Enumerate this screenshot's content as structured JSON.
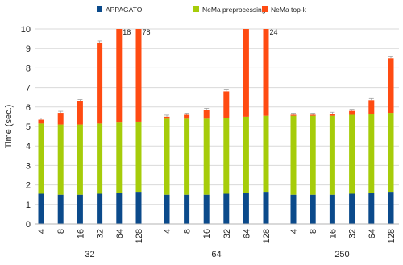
{
  "chart_data": {
    "type": "bar",
    "stacked": true,
    "title": "",
    "xlabel": "",
    "ylabel": "Time (sec.)",
    "ylim": [
      0,
      10
    ],
    "yticks": [
      "0",
      "1",
      "2",
      "3",
      "4",
      "5",
      "6",
      "7",
      "8",
      "9",
      "10"
    ],
    "grid": true,
    "legend_position": "top",
    "groups": [
      {
        "label": "32",
        "categories": [
          "4",
          "8",
          "16",
          "32",
          "64",
          "128"
        ]
      },
      {
        "label": "64",
        "categories": [
          "4",
          "8",
          "16",
          "32",
          "64",
          "128"
        ]
      },
      {
        "label": "250",
        "categories": [
          "4",
          "8",
          "16",
          "32",
          "64",
          "128"
        ]
      }
    ],
    "series": [
      {
        "name": "APPAGATO",
        "color": "#0b4a8b",
        "values": [
          [
            1.55,
            1.5,
            1.5,
            1.55,
            1.6,
            1.65
          ],
          [
            1.5,
            1.5,
            1.5,
            1.55,
            1.6,
            1.65
          ],
          [
            1.5,
            1.5,
            1.5,
            1.55,
            1.6,
            1.65
          ]
        ]
      },
      {
        "name": "NeMa preprocessing",
        "color": "#a6cc0a",
        "values": [
          [
            3.6,
            3.6,
            3.6,
            3.6,
            3.6,
            3.6
          ],
          [
            3.9,
            3.9,
            3.9,
            3.9,
            3.9,
            3.9
          ],
          [
            4.05,
            4.05,
            4.05,
            4.05,
            4.05,
            4.05
          ]
        ]
      },
      {
        "name": "NeMa top-k",
        "color": "#ff4b12",
        "values": [
          [
            0.2,
            0.6,
            1.2,
            4.15,
            14.4,
            74.4
          ],
          [
            0.1,
            0.2,
            0.45,
            1.35,
            5.4,
            20.1
          ],
          [
            0.05,
            0.05,
            0.1,
            0.2,
            0.7,
            2.8
          ]
        ]
      }
    ],
    "annotations": [
      {
        "group": 0,
        "category": "64",
        "text": "18"
      },
      {
        "group": 0,
        "category": "128",
        "text": "78"
      },
      {
        "group": 1,
        "category": "128",
        "text": "24"
      }
    ]
  }
}
